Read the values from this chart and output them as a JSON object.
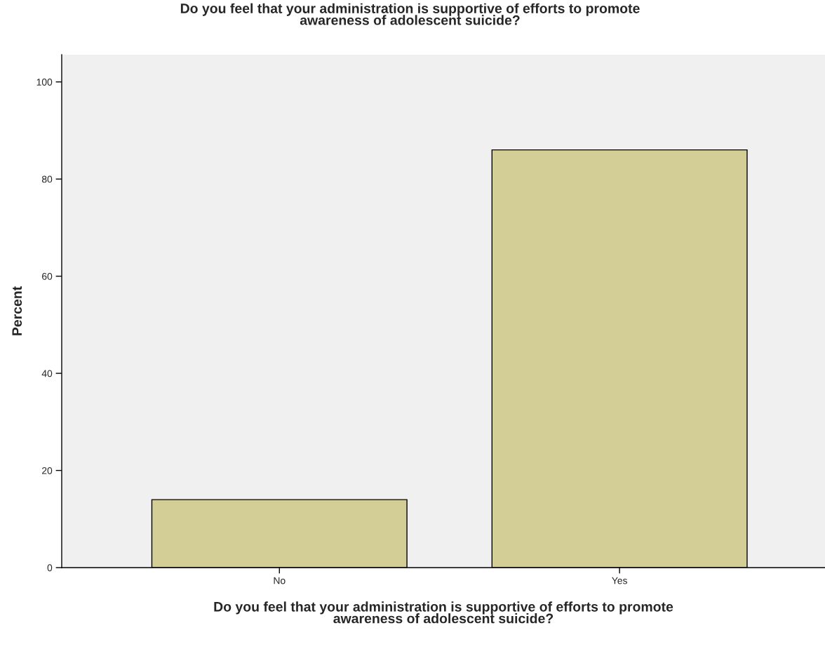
{
  "chart_data": {
    "type": "bar",
    "title": "Do you feel that your administration is supportive of efforts to promote\nawareness of adolescent suicide?",
    "xlabel": "Do you feel that your administration is supportive of efforts to promote\nawareness of adolescent suicide?",
    "ylabel": "Percent",
    "categories": [
      "No",
      "Yes"
    ],
    "values": [
      14,
      86
    ],
    "color": "#d3cd96",
    "ylim": [
      0,
      105.6
    ],
    "yticks": [
      0,
      20,
      40,
      60,
      80,
      100
    ],
    "grid": false
  }
}
